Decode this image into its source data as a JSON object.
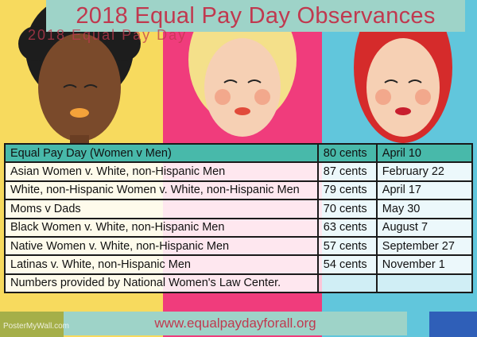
{
  "title": "2018 Equal Pay Day Observances",
  "ghost_text": "2018 Equal Pay Day",
  "table": {
    "header": [
      "Equal Pay Day (Women v Men)",
      "80 cents",
      "April 10"
    ],
    "rows": [
      [
        "Asian Women v. White, non-Hispanic Men",
        "87 cents",
        "February 22"
      ],
      [
        "White, non-Hispanic Women v. White, non-Hispanic Men",
        "79 cents",
        "April 17"
      ],
      [
        "Moms v Dads",
        "70 cents",
        "May 30"
      ],
      [
        "Black Women v. White, non-Hispanic Men",
        "63 cents",
        "August 7"
      ],
      [
        "Native Women v. White, non-Hispanic Men",
        "57 cents",
        "September 27"
      ],
      [
        "Latinas v. White, non-Hispanic Men",
        "54 cents",
        "November 1"
      ]
    ],
    "note": "Numbers provided by National Women's Law Center."
  },
  "footer_url": "www.equalpaydayforall.org",
  "watermark": "PosterMyWall.com",
  "colors": {
    "accent": "#c0394f",
    "header_teal": "#48b9aa",
    "bar_mint": "#9ed3c8",
    "panel_yellow": "#f7da5e",
    "panel_pink": "#f03c7c",
    "panel_blue": "#61c6dc"
  }
}
